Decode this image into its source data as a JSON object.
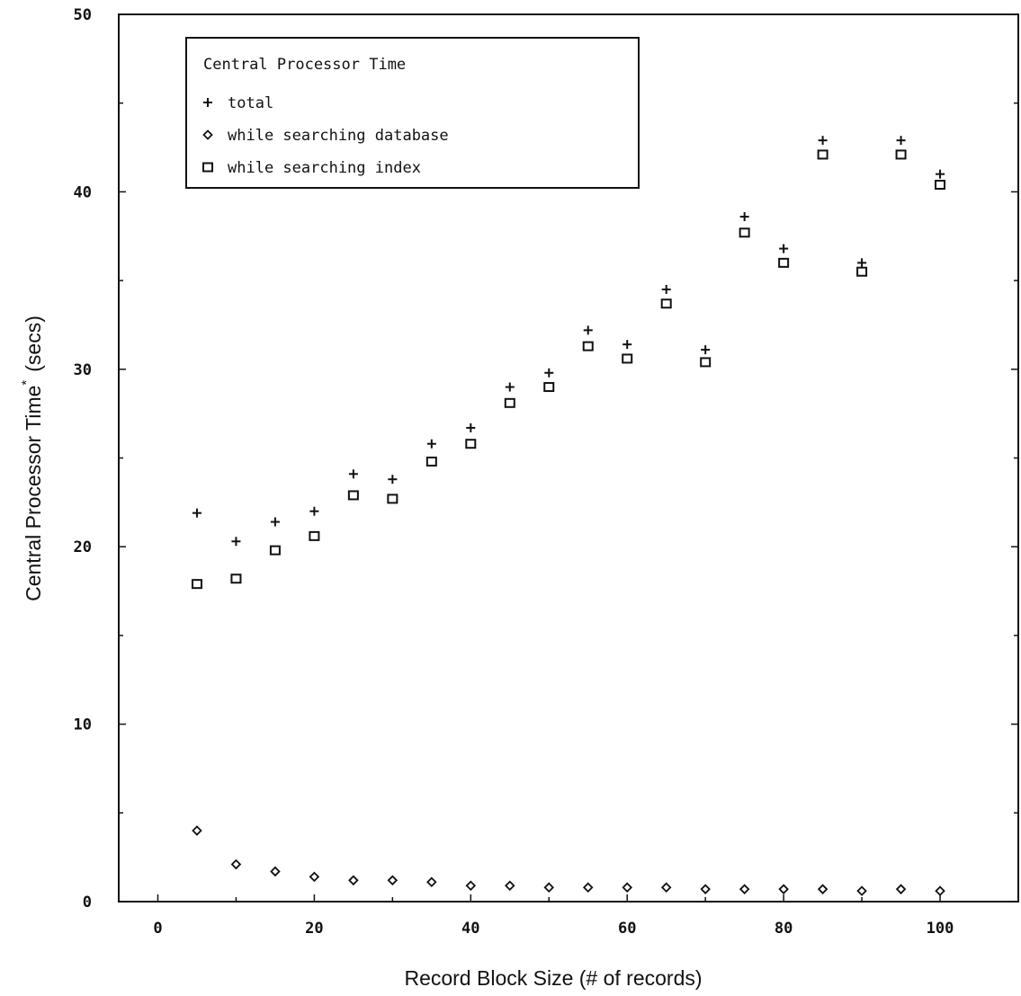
{
  "chart_data": {
    "type": "scatter",
    "title": "",
    "xlabel": "Record Block Size  (# of records)",
    "ylabel": "Central Processor Time",
    "ylabel_mark": "*",
    "ylabel_unit": "(secs)",
    "xlim": [
      -5,
      110
    ],
    "ylim": [
      0,
      50
    ],
    "x_ticks": [
      0,
      20,
      40,
      60,
      80,
      100
    ],
    "y_ticks": [
      0,
      10,
      20,
      30,
      40,
      50
    ],
    "x_tick_labels": [
      "0",
      "20",
      "40",
      "60",
      "80",
      "100"
    ],
    "y_tick_labels": [
      "0",
      "10",
      "20",
      "30",
      "40",
      "50"
    ],
    "grid": false,
    "legend": {
      "title": "Central Processor Time",
      "position": "top-left"
    },
    "series": [
      {
        "name": "total",
        "marker": "plus",
        "x": [
          5,
          10,
          15,
          20,
          25,
          30,
          35,
          40,
          45,
          50,
          55,
          60,
          65,
          70,
          75,
          80,
          85,
          90,
          95,
          100
        ],
        "y": [
          21.9,
          20.3,
          21.4,
          22.0,
          24.1,
          23.8,
          25.8,
          26.7,
          29.0,
          29.8,
          32.2,
          31.4,
          34.5,
          31.1,
          38.6,
          36.8,
          42.9,
          36.0,
          42.9,
          41.0
        ]
      },
      {
        "name": "while searching database",
        "marker": "diamond",
        "x": [
          5,
          10,
          15,
          20,
          25,
          30,
          35,
          40,
          45,
          50,
          55,
          60,
          65,
          70,
          75,
          80,
          85,
          90,
          95,
          100
        ],
        "y": [
          4.0,
          2.1,
          1.7,
          1.4,
          1.2,
          1.2,
          1.1,
          0.9,
          0.9,
          0.8,
          0.8,
          0.8,
          0.8,
          0.7,
          0.7,
          0.7,
          0.7,
          0.6,
          0.7,
          0.6
        ]
      },
      {
        "name": "while searching index",
        "marker": "square",
        "x": [
          5,
          10,
          15,
          20,
          25,
          30,
          35,
          40,
          45,
          50,
          55,
          60,
          65,
          70,
          75,
          80,
          85,
          90,
          95,
          100
        ],
        "y": [
          17.9,
          18.2,
          19.8,
          20.6,
          22.9,
          22.7,
          24.8,
          25.8,
          28.1,
          29.0,
          31.3,
          30.6,
          33.7,
          30.4,
          37.7,
          36.0,
          42.1,
          35.5,
          42.1,
          40.4
        ]
      }
    ]
  }
}
